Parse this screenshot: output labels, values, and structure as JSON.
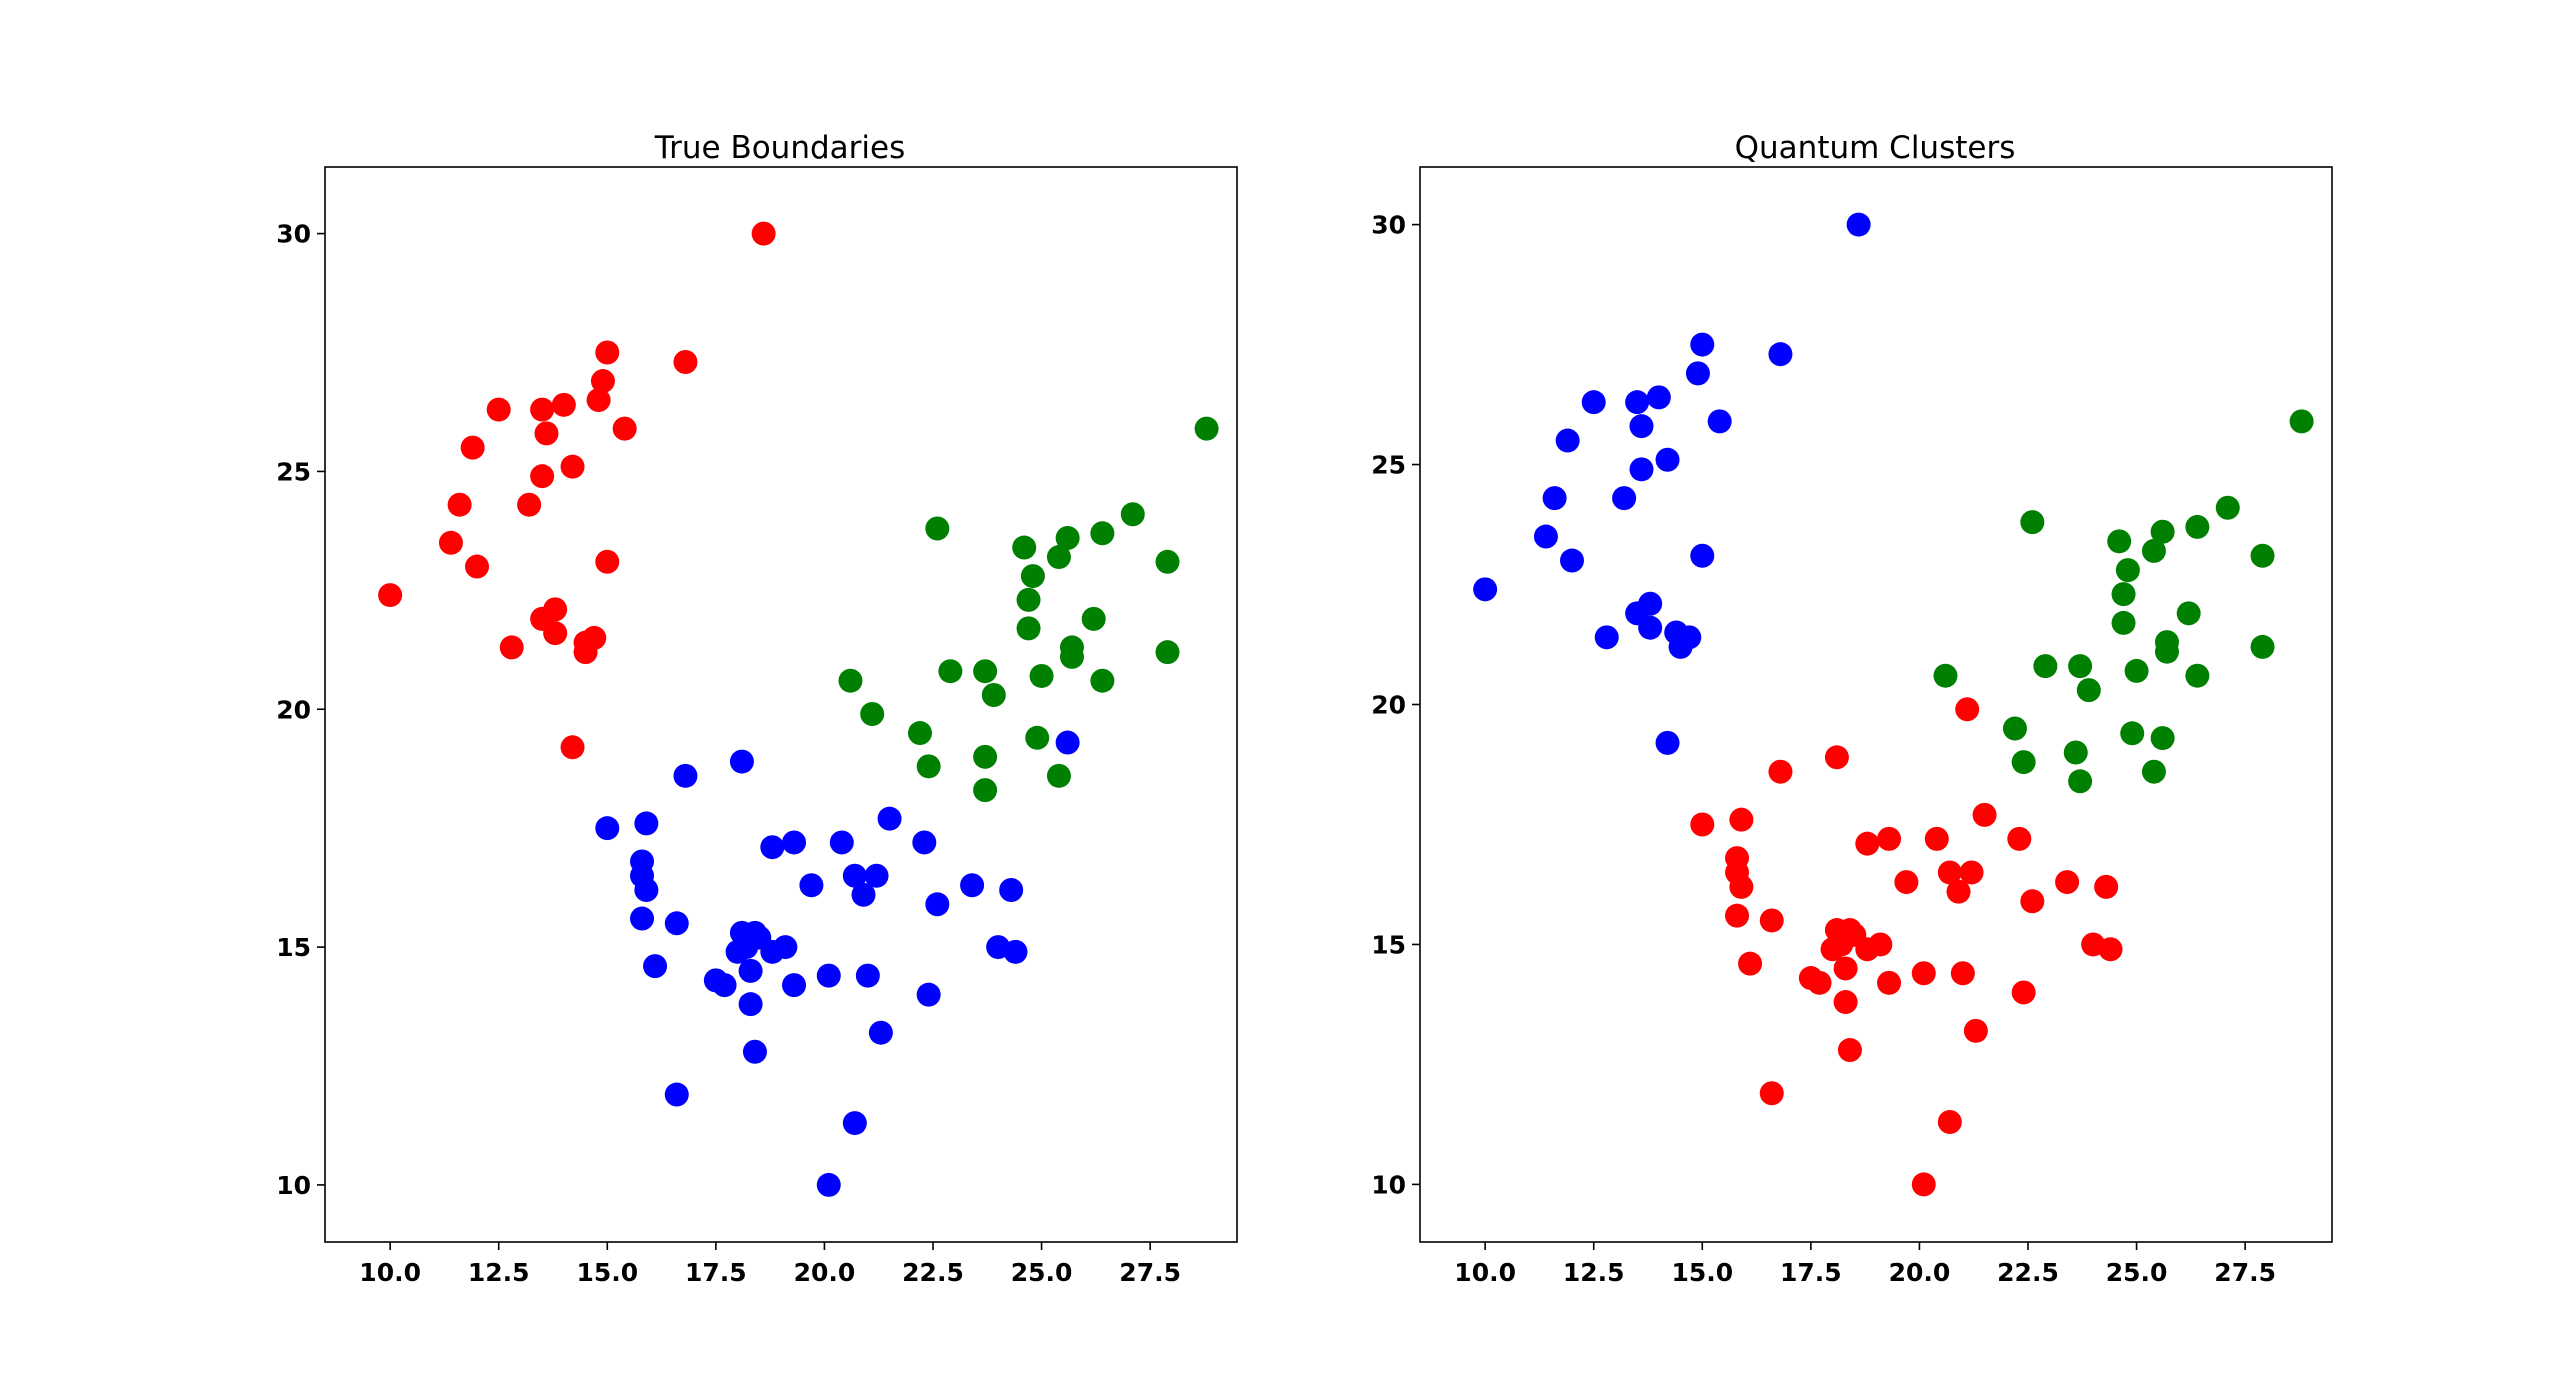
{
  "figure": {
    "background": "#ffffff"
  },
  "colors": {
    "red": "#ff0000",
    "green": "#008000",
    "blue": "#0000ff"
  },
  "chart_data": [
    {
      "type": "scatter",
      "title": "True Boundaries",
      "xlabel": "",
      "ylabel": "",
      "xlim": [
        8.5,
        29.5
      ],
      "ylim": [
        8.8,
        31.4
      ],
      "xticks": [
        "10.0",
        "12.5",
        "15.0",
        "17.5",
        "20.0",
        "22.5",
        "25.0",
        "27.5"
      ],
      "yticks": [
        "10",
        "15",
        "20",
        "25",
        "30"
      ],
      "grid": false,
      "series": [
        {
          "color": "#ff0000",
          "x": [
            18.6,
            15.0,
            16.8,
            14.9,
            12.5,
            13.5,
            14.0,
            14.8,
            15.4,
            13.6,
            11.9,
            14.2,
            13.5,
            11.6,
            13.2,
            11.4,
            12.0,
            15.0,
            10.0,
            13.8,
            13.5,
            12.8,
            14.5,
            14.7,
            13.8,
            14.5,
            14.2
          ],
          "y": [
            30.0,
            27.5,
            27.3,
            26.9,
            26.3,
            26.3,
            26.4,
            26.5,
            25.9,
            25.8,
            25.5,
            25.1,
            24.9,
            24.3,
            24.3,
            23.5,
            23.0,
            23.1,
            22.4,
            22.1,
            21.9,
            21.3,
            21.4,
            21.5,
            21.6,
            21.2,
            19.2
          ]
        },
        {
          "color": "#008000",
          "x": [
            28.8,
            27.1,
            27.9,
            26.4,
            25.6,
            25.4,
            24.6,
            24.8,
            24.7,
            24.7,
            26.2,
            25.7,
            25.7,
            25.0,
            26.4,
            22.6,
            22.9,
            23.7,
            23.9,
            20.6,
            21.1,
            22.2,
            24.9,
            23.7,
            22.4,
            25.4,
            23.7,
            27.9
          ],
          "y": [
            25.9,
            24.1,
            23.1,
            23.7,
            23.6,
            23.2,
            23.4,
            22.8,
            22.3,
            21.7,
            21.9,
            21.3,
            21.1,
            20.7,
            20.6,
            23.8,
            20.8,
            20.8,
            20.3,
            20.6,
            19.9,
            19.5,
            19.4,
            19.0,
            18.8,
            18.6,
            18.3,
            21.2
          ]
        },
        {
          "color": "#0000ff",
          "x": [
            25.6,
            18.1,
            16.8,
            21.5,
            15.0,
            15.9,
            18.8,
            19.3,
            20.4,
            22.3,
            15.8,
            15.8,
            20.7,
            21.2,
            15.9,
            19.7,
            23.4,
            24.3,
            20.9,
            22.6,
            15.8,
            16.6,
            18.1,
            18.4,
            18.5,
            18.2,
            19.1,
            18.0,
            18.8,
            16.1,
            18.3,
            20.1,
            21.0,
            17.5,
            17.7,
            19.3,
            24.0,
            24.4,
            22.4,
            18.3,
            21.3,
            18.4,
            16.6,
            20.7,
            20.1
          ],
          "y": [
            19.3,
            18.9,
            18.6,
            17.7,
            17.5,
            17.6,
            17.1,
            17.2,
            17.2,
            17.2,
            16.8,
            16.5,
            16.5,
            16.5,
            16.2,
            16.3,
            16.3,
            16.2,
            16.1,
            15.9,
            15.6,
            15.5,
            15.3,
            15.3,
            15.2,
            15.0,
            15.0,
            14.9,
            14.9,
            14.6,
            14.5,
            14.4,
            14.4,
            14.3,
            14.2,
            14.2,
            15.0,
            14.9,
            14.0,
            13.8,
            13.2,
            12.8,
            11.9,
            11.3,
            10.0
          ]
        }
      ]
    },
    {
      "type": "scatter",
      "title": "Quantum Clusters",
      "xlabel": "",
      "ylabel": "",
      "xlim": [
        8.5,
        29.5
      ],
      "ylim": [
        8.8,
        31.2
      ],
      "xticks": [
        "10.0",
        "12.5",
        "15.0",
        "17.5",
        "20.0",
        "22.5",
        "25.0",
        "27.5"
      ],
      "yticks": [
        "10",
        "15",
        "20",
        "25",
        "30"
      ],
      "grid": false,
      "series": [
        {
          "color": "#0000ff",
          "x": [
            18.6,
            15.0,
            16.8,
            14.9,
            12.5,
            13.5,
            14.0,
            15.4,
            13.6,
            11.9,
            14.2,
            13.6,
            11.6,
            13.2,
            11.4,
            12.0,
            15.0,
            10.0,
            13.8,
            13.5,
            12.8,
            14.4,
            14.7,
            13.8,
            14.5,
            14.2
          ],
          "y": [
            30.0,
            27.5,
            27.3,
            26.9,
            26.3,
            26.3,
            26.4,
            25.9,
            25.8,
            25.5,
            25.1,
            24.9,
            24.3,
            24.3,
            23.5,
            23.0,
            23.1,
            22.4,
            22.1,
            21.9,
            21.4,
            21.5,
            21.4,
            21.6,
            21.2,
            19.2
          ]
        },
        {
          "color": "#008000",
          "x": [
            28.8,
            27.1,
            27.9,
            26.4,
            25.6,
            25.4,
            24.6,
            24.8,
            24.7,
            24.7,
            26.2,
            25.7,
            25.7,
            25.0,
            26.4,
            22.6,
            22.9,
            23.7,
            23.9,
            20.6,
            22.2,
            24.9,
            23.6,
            22.4,
            25.4,
            23.7,
            27.9,
            25.6
          ],
          "y": [
            25.9,
            24.1,
            23.1,
            23.7,
            23.6,
            23.2,
            23.4,
            22.8,
            22.3,
            21.7,
            21.9,
            21.3,
            21.1,
            20.7,
            20.6,
            23.8,
            20.8,
            20.8,
            20.3,
            20.6,
            19.5,
            19.4,
            19.0,
            18.8,
            18.6,
            18.4,
            21.2,
            19.3
          ]
        },
        {
          "color": "#ff0000",
          "x": [
            21.1,
            18.1,
            16.8,
            21.5,
            15.0,
            15.9,
            18.8,
            19.3,
            20.4,
            22.3,
            15.8,
            15.8,
            20.7,
            21.2,
            15.9,
            19.7,
            23.4,
            24.3,
            20.9,
            22.6,
            15.8,
            16.6,
            18.1,
            18.4,
            18.5,
            18.2,
            19.1,
            18.0,
            18.8,
            16.1,
            18.3,
            20.1,
            21.0,
            17.5,
            17.7,
            19.3,
            24.0,
            24.4,
            22.4,
            18.3,
            21.3,
            18.4,
            16.6,
            20.7,
            20.1
          ],
          "y": [
            19.9,
            18.9,
            18.6,
            17.7,
            17.5,
            17.6,
            17.1,
            17.2,
            17.2,
            17.2,
            16.8,
            16.5,
            16.5,
            16.5,
            16.2,
            16.3,
            16.3,
            16.2,
            16.1,
            15.9,
            15.6,
            15.5,
            15.3,
            15.3,
            15.2,
            15.0,
            15.0,
            14.9,
            14.9,
            14.6,
            14.5,
            14.4,
            14.4,
            14.3,
            14.2,
            14.2,
            15.0,
            14.9,
            14.0,
            13.8,
            13.2,
            12.8,
            11.9,
            11.3,
            10.0
          ]
        }
      ]
    }
  ]
}
